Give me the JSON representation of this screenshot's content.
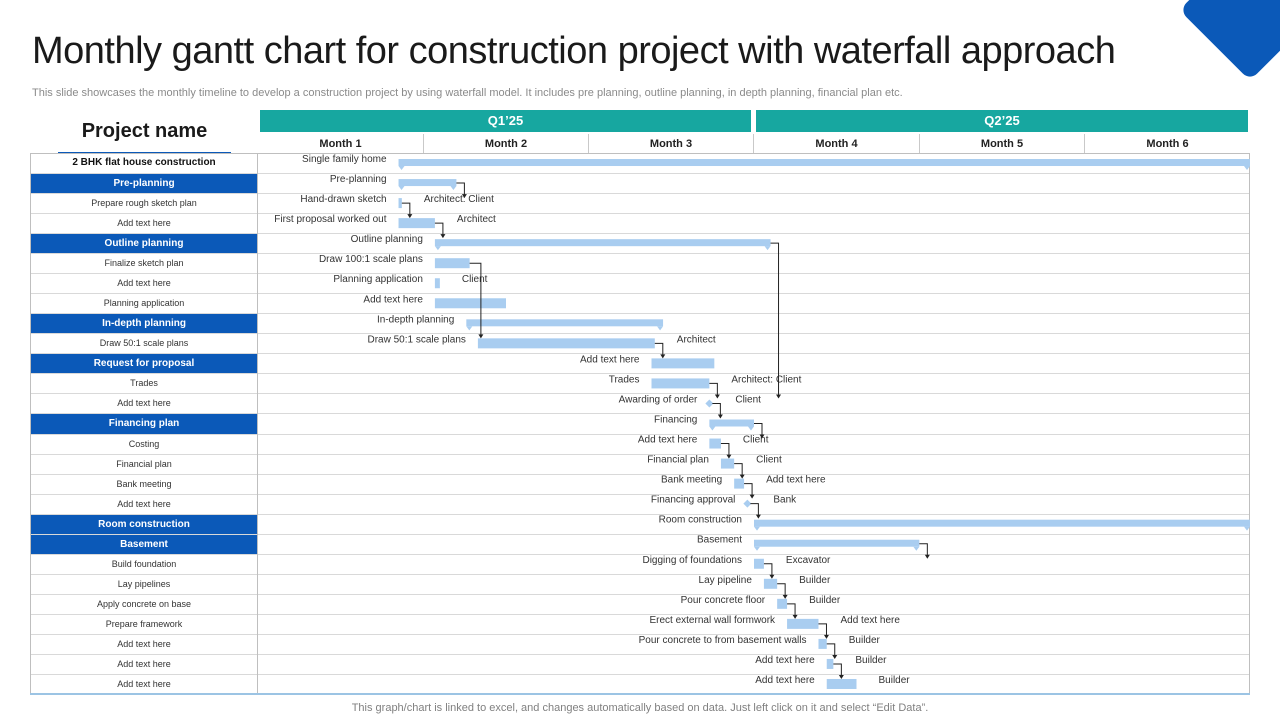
{
  "title": "Monthly gantt chart for construction project with waterfall approach",
  "subtitle": "This slide showcases the monthly timeline to develop a construction project by using waterfall model. It includes pre planning, outline planning, in depth planning, financial plan etc.",
  "footer": "This graph/chart is linked to excel,  and changes automatically based on data. Just left click on it and select “Edit Data”.",
  "project_name_label": "Project name",
  "colors": {
    "phase_bg": "#0b59b8",
    "quarter_bg": "#17a7a0",
    "bar": "#a9cdf0",
    "text": "#333333"
  },
  "quarters": [
    "Q1’25",
    "Q2’25"
  ],
  "months": [
    "Month 1",
    "Month 2",
    "Month 3",
    "Month 4",
    "Month 5",
    "Month 6"
  ],
  "rows": [
    {
      "label": "2 BHK flat house construction",
      "kind": "top"
    },
    {
      "label": "Pre-planning",
      "kind": "phase"
    },
    {
      "label": "Prepare rough sketch plan",
      "kind": "task"
    },
    {
      "label": "Add text here",
      "kind": "task"
    },
    {
      "label": "Outline planning",
      "kind": "phase"
    },
    {
      "label": "Finalize sketch plan",
      "kind": "task"
    },
    {
      "label": "Add text here",
      "kind": "task"
    },
    {
      "label": "Planning application",
      "kind": "task"
    },
    {
      "label": "In-depth planning",
      "kind": "phase"
    },
    {
      "label": "Draw 50:1 scale plans",
      "kind": "task"
    },
    {
      "label": "Request  for proposal",
      "kind": "phase"
    },
    {
      "label": "Trades",
      "kind": "task"
    },
    {
      "label": "Add text here",
      "kind": "task"
    },
    {
      "label": "Financing plan",
      "kind": "phase"
    },
    {
      "label": "Costing",
      "kind": "task"
    },
    {
      "label": "Financial plan",
      "kind": "task"
    },
    {
      "label": "Bank meeting",
      "kind": "task"
    },
    {
      "label": "Add text here",
      "kind": "task"
    },
    {
      "label": "Room construction",
      "kind": "phase"
    },
    {
      "label": "Basement",
      "kind": "phase"
    },
    {
      "label": "Build foundation",
      "kind": "task"
    },
    {
      "label": "Lay pipelines",
      "kind": "task"
    },
    {
      "label": "Apply concrete on base",
      "kind": "task"
    },
    {
      "label": "Prepare framework",
      "kind": "task"
    },
    {
      "label": "Add text here",
      "kind": "task"
    },
    {
      "label": "Add text here",
      "kind": "task"
    },
    {
      "label": "Add text here",
      "kind": "task"
    }
  ],
  "chart_data": {
    "type": "gantt",
    "title": "Monthly gantt chart for construction project with waterfall approach",
    "x_unit": "month",
    "xlim": [
      0,
      6
    ],
    "tasks": [
      {
        "row": 0,
        "name": "Single  family home",
        "start": 0.85,
        "end": 6.0,
        "type": "summary"
      },
      {
        "row": 1,
        "name": "Pre-planning",
        "start": 0.85,
        "end": 1.2,
        "type": "summary"
      },
      {
        "row": 2,
        "name": "Hand-drawn sketch",
        "start": 0.85,
        "end": 0.87,
        "type": "task",
        "resource": "Architect: Client"
      },
      {
        "row": 3,
        "name": "First proposal worked out",
        "start": 0.85,
        "end": 1.07,
        "type": "task",
        "resource": "Architect"
      },
      {
        "row": 4,
        "name": "Outline planning",
        "start": 1.07,
        "end": 3.1,
        "type": "summary"
      },
      {
        "row": 5,
        "name": "Draw 100:1 scale plans",
        "start": 1.07,
        "end": 1.28,
        "type": "task"
      },
      {
        "row": 6,
        "name": "Planning  application",
        "start": 1.07,
        "end": 1.1,
        "type": "task",
        "resource": "Client"
      },
      {
        "row": 7,
        "name": "Add text here",
        "start": 1.07,
        "end": 1.5,
        "type": "task"
      },
      {
        "row": 8,
        "name": "In-depth planning",
        "start": 1.26,
        "end": 2.45,
        "type": "summary"
      },
      {
        "row": 9,
        "name": "Draw 50:1 scale plans",
        "start": 1.33,
        "end": 2.4,
        "type": "task",
        "resource": "Architect"
      },
      {
        "row": 10,
        "name": "Add text here",
        "start": 2.38,
        "end": 2.76,
        "type": "task"
      },
      {
        "row": 11,
        "name": "Trades",
        "start": 2.38,
        "end": 2.73,
        "type": "task",
        "resource": "Architect: Client"
      },
      {
        "row": 12,
        "name": "Awarding of order",
        "start": 2.73,
        "end": 2.73,
        "type": "milestone",
        "resource": "Client"
      },
      {
        "row": 13,
        "name": "Financing",
        "start": 2.73,
        "end": 3.0,
        "type": "summary"
      },
      {
        "row": 14,
        "name": "Add text here",
        "start": 2.73,
        "end": 2.8,
        "type": "task",
        "resource": "Client"
      },
      {
        "row": 15,
        "name": "Financial plan",
        "start": 2.8,
        "end": 2.88,
        "type": "task",
        "resource": "Client"
      },
      {
        "row": 16,
        "name": "Bank meeting",
        "start": 2.88,
        "end": 2.94,
        "type": "task",
        "resource": "Add text here"
      },
      {
        "row": 17,
        "name": "Financing approval",
        "start": 2.96,
        "end": 2.96,
        "type": "milestone",
        "resource": "Bank"
      },
      {
        "row": 18,
        "name": "Room construction",
        "start": 3.0,
        "end": 6.0,
        "type": "summary"
      },
      {
        "row": 19,
        "name": "Basement",
        "start": 3.0,
        "end": 4.0,
        "type": "summary"
      },
      {
        "row": 20,
        "name": "Digging  of foundations",
        "start": 3.0,
        "end": 3.06,
        "type": "task",
        "resource": "Excavator"
      },
      {
        "row": 21,
        "name": "Lay pipeline",
        "start": 3.06,
        "end": 3.14,
        "type": "task",
        "resource": "Builder"
      },
      {
        "row": 22,
        "name": "Pour concrete floor",
        "start": 3.14,
        "end": 3.2,
        "type": "task",
        "resource": "Builder"
      },
      {
        "row": 23,
        "name": "Erect external wall formwork",
        "start": 3.2,
        "end": 3.39,
        "type": "task",
        "resource": "Add text here"
      },
      {
        "row": 24,
        "name": "Pour concrete to from basement walls",
        "start": 3.39,
        "end": 3.44,
        "type": "task",
        "resource": "Builder"
      },
      {
        "row": 25,
        "name": "Add text here",
        "start": 3.44,
        "end": 3.48,
        "type": "task",
        "resource": "Builder"
      },
      {
        "row": 26,
        "name": "Add text here",
        "start": 3.44,
        "end": 3.62,
        "type": "task",
        "resource": "Builder"
      }
    ],
    "dependencies": [
      [
        1,
        2
      ],
      [
        2,
        3
      ],
      [
        3,
        4
      ],
      [
        5,
        9
      ],
      [
        4,
        12
      ],
      [
        9,
        10
      ],
      [
        11,
        12
      ],
      [
        12,
        13
      ],
      [
        13,
        14
      ],
      [
        14,
        15
      ],
      [
        15,
        16
      ],
      [
        16,
        17
      ],
      [
        17,
        18
      ],
      [
        19,
        20
      ],
      [
        20,
        21
      ],
      [
        21,
        22
      ],
      [
        22,
        23
      ],
      [
        23,
        24
      ],
      [
        24,
        25
      ],
      [
        25,
        26
      ]
    ]
  }
}
